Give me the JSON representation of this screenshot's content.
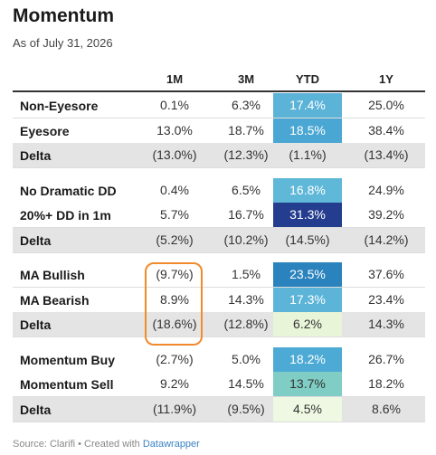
{
  "header": {
    "title": "Momentum",
    "subtitle": "As of July 31, 2026"
  },
  "table": {
    "columns": [
      "1M",
      "3M",
      "YTD",
      "1Y"
    ],
    "groups": [
      {
        "rows": [
          {
            "label": "Non-Eyesore",
            "cells": [
              "0.1%",
              "6.3%",
              "17.4%",
              "25.0%"
            ],
            "ytd_color": "#5cb3d8"
          },
          {
            "label": "Eyesore",
            "cells": [
              "13.0%",
              "18.7%",
              "18.5%",
              "38.4%"
            ],
            "ytd_color": "#4aa7d3"
          },
          {
            "label": "Delta",
            "cells": [
              "(13.0%)",
              "(12.3%)",
              "(1.1%)",
              "(13.4%)"
            ],
            "background": "#e4e4e4"
          }
        ]
      },
      {
        "rows": [
          {
            "label": "No Dramatic DD",
            "cells": [
              "0.4%",
              "6.5%",
              "16.8%",
              "24.9%"
            ],
            "ytd_color": "#5fb8d8"
          },
          {
            "label": "20%+ DD in 1m",
            "cells": [
              "5.7%",
              "16.7%",
              "31.3%",
              "39.2%"
            ],
            "ytd_color": "#253d8f"
          },
          {
            "label": "Delta",
            "cells": [
              "(5.2%)",
              "(10.2%)",
              "(14.5%)",
              "(14.2%)"
            ],
            "background": "#e4e4e4"
          }
        ]
      },
      {
        "rows": [
          {
            "label": "MA Bullish",
            "cells": [
              "(9.7%)",
              "1.5%",
              "23.5%",
              "37.6%"
            ],
            "ytd_color": "#2b83bd"
          },
          {
            "label": "MA Bearish",
            "cells": [
              "8.9%",
              "14.3%",
              "17.3%",
              "23.4%"
            ],
            "ytd_color": "#5cb5d8"
          },
          {
            "label": "Delta",
            "cells": [
              "(18.6%)",
              "(12.8%)",
              "6.2%",
              "14.3%"
            ],
            "background": "#e4e4e4",
            "ytd_color": "#e8f5d8"
          }
        ]
      },
      {
        "rows": [
          {
            "label": "Momentum Buy",
            "cells": [
              "(2.7%)",
              "5.0%",
              "18.2%",
              "26.7%"
            ],
            "ytd_color": "#4daad4"
          },
          {
            "label": "Momentum Sell",
            "cells": [
              "9.2%",
              "14.5%",
              "13.7%",
              "18.2%"
            ],
            "ytd_color": "#7fcdc4"
          },
          {
            "label": "Delta",
            "cells": [
              "(11.9%)",
              "(9.5%)",
              "4.5%",
              "8.6%"
            ],
            "background": "#e4e4e4",
            "ytd_color": "#eef8e2"
          }
        ]
      }
    ]
  },
  "footer": {
    "source": "Source: Clarifi • Created with",
    "link": "Datawrapper"
  }
}
